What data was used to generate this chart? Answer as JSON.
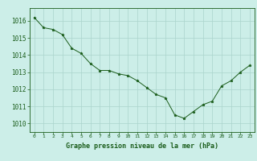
{
  "x": [
    0,
    1,
    2,
    3,
    4,
    5,
    6,
    7,
    8,
    9,
    10,
    11,
    12,
    13,
    14,
    15,
    16,
    17,
    18,
    19,
    20,
    21,
    22,
    23
  ],
  "y": [
    1016.2,
    1015.6,
    1015.5,
    1015.2,
    1014.4,
    1014.1,
    1013.5,
    1013.1,
    1013.1,
    1012.9,
    1012.8,
    1012.5,
    1012.1,
    1011.7,
    1011.5,
    1010.5,
    1010.3,
    1010.7,
    1011.1,
    1011.3,
    1012.2,
    1012.5,
    1013.0,
    1013.4
  ],
  "line_color": "#1a5c1a",
  "marker": "*",
  "marker_size": 2.5,
  "bg_color": "#cceee8",
  "grid_color": "#aad4cc",
  "xlabel": "Graphe pression niveau de la mer (hPa)",
  "xlabel_color": "#1a5c1a",
  "tick_color": "#1a5c1a",
  "ylim": [
    1009.5,
    1016.75
  ],
  "xlim": [
    -0.5,
    23.5
  ],
  "yticks": [
    1010,
    1011,
    1012,
    1013,
    1014,
    1015,
    1016
  ],
  "xtick_labels": [
    "0",
    "1",
    "2",
    "3",
    "4",
    "5",
    "6",
    "7",
    "8",
    "9",
    "10",
    "11",
    "12",
    "13",
    "14",
    "15",
    "16",
    "17",
    "18",
    "19",
    "20",
    "21",
    "22",
    "23"
  ],
  "spine_color": "#1a5c1a",
  "fig_bg": "#cceee8",
  "linewidth": 0.7,
  "grid_linewidth": 0.5
}
